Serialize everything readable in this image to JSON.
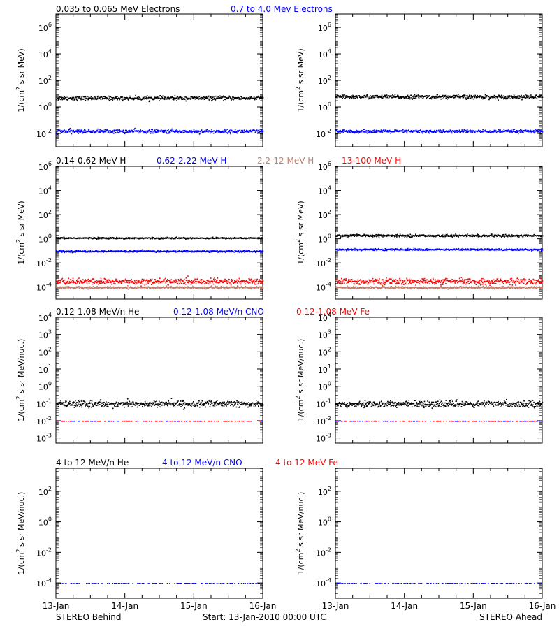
{
  "x_tick_labels": [
    "13-Jan",
    "14-Jan",
    "15-Jan",
    "16-Jan"
  ],
  "footer": {
    "left": "STEREO Behind",
    "center": "Start: 13-Jan-2010 00:00 UTC",
    "right": "STEREO Ahead"
  },
  "colors": {
    "black": "#000000",
    "blue": "#0000ff",
    "tan": "#c08070",
    "red": "#ff0000"
  },
  "rows": [
    {
      "title_parts": [
        {
          "text": "0.035 to 0.065 MeV Electrons",
          "color": "#000000"
        },
        {
          "text": "0.7 to 4.0 Mev Electrons",
          "color": "#0000ff"
        }
      ],
      "ylabel_base": "1/(cm",
      "ylabel_sup": "2",
      "ylabel_tail": " s sr MeV)",
      "yticks": [
        {
          "base": "10",
          "exp": "6",
          "value": 6
        },
        {
          "base": "10",
          "exp": "4",
          "value": 4
        },
        {
          "base": "10",
          "exp": "2",
          "value": 2
        },
        {
          "base": "10",
          "exp": "0",
          "value": 0
        },
        {
          "base": "10",
          "exp": "-2",
          "value": -2
        }
      ],
      "ylim_log10": [
        -3,
        7
      ]
    },
    {
      "title_parts": [
        {
          "text": "0.14-0.62 MeV H",
          "color": "#000000"
        },
        {
          "text": "0.62-2.22 MeV H",
          "color": "#0000ff"
        },
        {
          "text": "2.2-12 MeV H",
          "color": "#c08070"
        },
        {
          "text": "13-100 MeV H",
          "color": "#ff0000"
        }
      ],
      "ylabel_base": "1/(cm",
      "ylabel_sup": "2",
      "ylabel_tail": " s sr MeV)",
      "yticks": [
        {
          "base": "10",
          "exp": "6",
          "value": 6
        },
        {
          "base": "10",
          "exp": "4",
          "value": 4
        },
        {
          "base": "10",
          "exp": "2",
          "value": 2
        },
        {
          "base": "10",
          "exp": "0",
          "value": 0
        },
        {
          "base": "10",
          "exp": "-2",
          "value": -2
        },
        {
          "base": "10",
          "exp": "-4",
          "value": -4
        }
      ],
      "ylim_log10": [
        -5,
        6
      ]
    },
    {
      "title_parts": [
        {
          "text": "0.12-1.08 MeV/n He",
          "color": "#000000"
        },
        {
          "text": "0.12-1.08 MeV/n CNO",
          "color": "#0000ff"
        },
        {
          "text": "0.12-1.08 MeV Fe",
          "color": "#ff0000"
        }
      ],
      "ylabel_base": "1/(cm",
      "ylabel_sup": "2",
      "ylabel_tail": " s sr MeV/nuc.)",
      "yticks": [
        {
          "base": "10",
          "exp": "4",
          "value": 4
        },
        {
          "base": "10",
          "exp": "3",
          "value": 3
        },
        {
          "base": "10",
          "exp": "2",
          "value": 2
        },
        {
          "base": "10",
          "exp": "1",
          "value": 1
        },
        {
          "base": "10",
          "exp": "0",
          "value": 0
        },
        {
          "base": "10",
          "exp": "-1",
          "value": -1
        },
        {
          "base": "10",
          "exp": "-2",
          "value": -2
        },
        {
          "base": "10",
          "exp": "-3",
          "value": -3
        }
      ],
      "ylim_log10": [
        -3.3,
        4
      ]
    },
    {
      "title_parts": [
        {
          "text": "4 to 12 MeV/n He",
          "color": "#000000"
        },
        {
          "text": "4 to 12 MeV/n CNO",
          "color": "#0000ff"
        },
        {
          "text": "4 to 12 MeV Fe",
          "color": "#ff0000"
        }
      ],
      "ylabel_base": "1/(cm",
      "ylabel_sup": "2",
      "ylabel_tail": " s sr MeV/nuc.)",
      "yticks": [
        {
          "base": "10",
          "exp": "2",
          "value": 2
        },
        {
          "base": "10",
          "exp": "0",
          "value": 0
        },
        {
          "base": "10",
          "exp": "-2",
          "value": -2
        },
        {
          "base": "10",
          "exp": "-4",
          "value": -4
        }
      ],
      "ylim_log10": [
        -5,
        3.5
      ]
    }
  ],
  "chart_data": [
    {
      "type": "scatter",
      "panel": "STEREO Behind electrons",
      "xlim_days": [
        0,
        3
      ],
      "yscale": "log",
      "series": [
        {
          "name": "0.035 to 0.065 MeV Electrons",
          "color": "#000000",
          "level_log10": 0.7,
          "spread": 0.12
        },
        {
          "name": "0.7 to 4.0 Mev Electrons",
          "color": "#0000ff",
          "level_log10": -1.8,
          "spread": 0.12
        }
      ]
    },
    {
      "type": "scatter",
      "panel": "STEREO Ahead electrons",
      "xlim_days": [
        0,
        3
      ],
      "yscale": "log",
      "series": [
        {
          "name": "0.035 to 0.065 MeV Electrons",
          "color": "#000000",
          "level_log10": 0.8,
          "spread": 0.12
        },
        {
          "name": "0.7 to 4.0 Mev Electrons",
          "color": "#0000ff",
          "level_log10": -1.8,
          "spread": 0.1
        }
      ]
    },
    {
      "type": "scatter",
      "panel": "STEREO Behind protons",
      "xlim_days": [
        0,
        3
      ],
      "yscale": "log",
      "series": [
        {
          "name": "0.14-0.62 MeV H",
          "color": "#000000",
          "level_log10": 0.1,
          "spread": 0.05
        },
        {
          "name": "0.62-2.22 MeV H",
          "color": "#0000ff",
          "level_log10": -1.0,
          "spread": 0.06
        },
        {
          "name": "13-100 MeV H",
          "color": "#ff0000",
          "level_log10": -3.5,
          "spread": 0.2
        },
        {
          "name": "2.2-12 MeV H",
          "color": "#c08070",
          "level_log10": -4.0,
          "spread": 0.08
        }
      ]
    },
    {
      "type": "scatter",
      "panel": "STEREO Ahead protons",
      "xlim_days": [
        0,
        3
      ],
      "yscale": "log",
      "series": [
        {
          "name": "0.14-0.62 MeV H",
          "color": "#000000",
          "level_log10": 0.3,
          "spread": 0.08
        },
        {
          "name": "0.62-2.22 MeV H",
          "color": "#0000ff",
          "level_log10": -0.85,
          "spread": 0.06
        },
        {
          "name": "13-100 MeV H",
          "color": "#ff0000",
          "level_log10": -3.5,
          "spread": 0.2
        },
        {
          "name": "2.2-12 MeV H",
          "color": "#c08070",
          "level_log10": -4.0,
          "spread": 0.08
        }
      ]
    },
    {
      "type": "scatter",
      "panel": "STEREO Behind heavy ions low energy",
      "xlim_days": [
        0,
        3
      ],
      "yscale": "log",
      "series": [
        {
          "name": "0.12-1.08 MeV/n He",
          "color": "#000000",
          "level_log10": -1.0,
          "spread": 0.15
        },
        {
          "name": "0.12-1.08 MeV/n CNO",
          "color": "#0000ff",
          "level_log10": -2.0,
          "spread": 0.0
        },
        {
          "name": "0.12-1.08 MeV Fe",
          "color": "#ff0000",
          "level_log10": -2.0,
          "spread": 0.0
        }
      ]
    },
    {
      "type": "scatter",
      "panel": "STEREO Ahead heavy ions low energy",
      "xlim_days": [
        0,
        3
      ],
      "yscale": "log",
      "series": [
        {
          "name": "0.12-1.08 MeV/n He",
          "color": "#000000",
          "level_log10": -1.0,
          "spread": 0.15
        },
        {
          "name": "0.12-1.08 MeV/n CNO",
          "color": "#0000ff",
          "level_log10": -2.0,
          "spread": 0.0
        },
        {
          "name": "0.12-1.08 MeV Fe",
          "color": "#ff0000",
          "level_log10": -2.0,
          "spread": 0.0
        }
      ]
    },
    {
      "type": "scatter",
      "panel": "STEREO Behind heavy ions high energy",
      "xlim_days": [
        0,
        3
      ],
      "yscale": "log",
      "series": [
        {
          "name": "4 to 12 MeV/n He",
          "color": "#000000",
          "level_log10": -4.0,
          "spread": 0.0
        },
        {
          "name": "4 to 12 MeV/n CNO",
          "color": "#0000ff",
          "level_log10": -4.0,
          "spread": 0.0
        }
      ]
    },
    {
      "type": "scatter",
      "panel": "STEREO Ahead heavy ions high energy",
      "xlim_days": [
        0,
        3
      ],
      "yscale": "log",
      "series": [
        {
          "name": "4 to 12 MeV/n He",
          "color": "#000000",
          "level_log10": -4.0,
          "spread": 0.0
        },
        {
          "name": "4 to 12 MeV/n CNO",
          "color": "#0000ff",
          "level_log10": -4.0,
          "spread": 0.0
        }
      ]
    }
  ]
}
